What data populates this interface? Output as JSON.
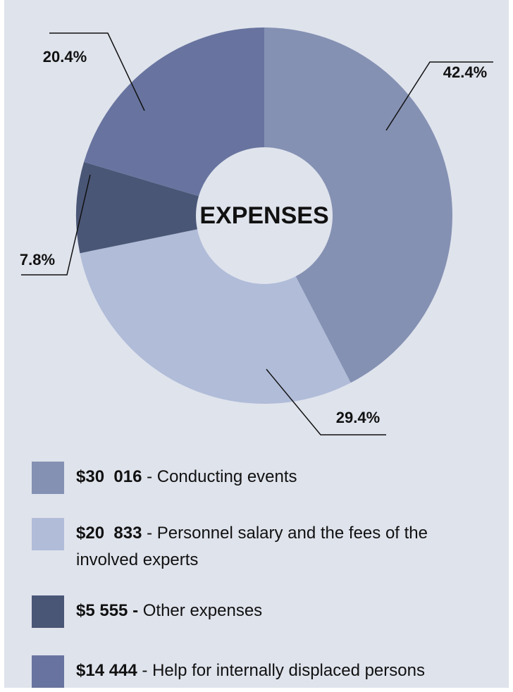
{
  "chart_data": {
    "type": "donut",
    "title": "EXPENSES",
    "categories": [
      "Conducting events",
      "Personnel salary and the fees of the involved experts",
      "Other expenses",
      "Help for internally displaced persons"
    ],
    "values": [
      42.4,
      29.4,
      7.8,
      20.4
    ],
    "value_labels": [
      "42.4%",
      "29.4%",
      "7.8%",
      "20.4%"
    ],
    "colors": [
      "#8591b3",
      "#b0bcd8",
      "#4a5676",
      "#68749f"
    ],
    "legend": [
      {
        "amount": "$30  016",
        "text": " - Conducting events"
      },
      {
        "amount": "$20  833",
        "text": " - Personnel salary and the fees of the involved experts"
      },
      {
        "amount": "$5 555 -",
        "text": " Other expenses"
      },
      {
        "amount": "$14 444",
        "text": " - Help for internally displaced persons"
      }
    ]
  }
}
